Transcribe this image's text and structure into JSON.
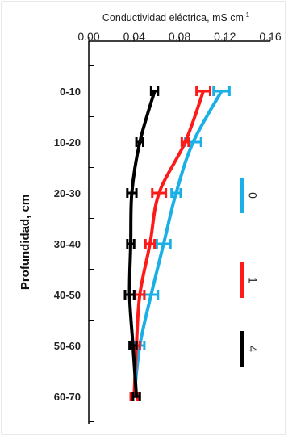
{
  "chart_data": {
    "type": "line",
    "orientation": "vertical-depth-profile",
    "x_title": "Conductividad eléctrica, mS cm",
    "x_title_superscript": "-1",
    "y_title": "Profundidad, cm",
    "xlim": [
      0.0,
      0.16
    ],
    "x_ticks": [
      "0.00",
      "0.04",
      "0.08",
      "0.12",
      "0.16"
    ],
    "categories": [
      "0-10",
      "10-20",
      "20-30",
      "30-40",
      "40-50",
      "50-60",
      "60-70"
    ],
    "legend_position": "right (rotated)",
    "grid": false,
    "series": [
      {
        "name": "0",
        "color": "#1ab0e6",
        "values": [
          0.117,
          0.092,
          0.077,
          0.066,
          0.055,
          0.045,
          0.04
        ],
        "errors": [
          0.007,
          0.007,
          0.004,
          0.006,
          0.006,
          0.004,
          0.003
        ]
      },
      {
        "name": "1",
        "color": "#ff1a1a",
        "values": [
          0.101,
          0.085,
          0.062,
          0.054,
          0.045,
          0.042,
          0.04
        ],
        "errors": [
          0.006,
          0.003,
          0.006,
          0.004,
          0.004,
          0.003,
          0.003
        ]
      },
      {
        "name": "4",
        "color": "#000000",
        "values": [
          0.058,
          0.045,
          0.038,
          0.037,
          0.036,
          0.039,
          0.042
        ],
        "errors": [
          0.003,
          0.003,
          0.004,
          0.003,
          0.004,
          0.003,
          0.003
        ]
      }
    ]
  }
}
